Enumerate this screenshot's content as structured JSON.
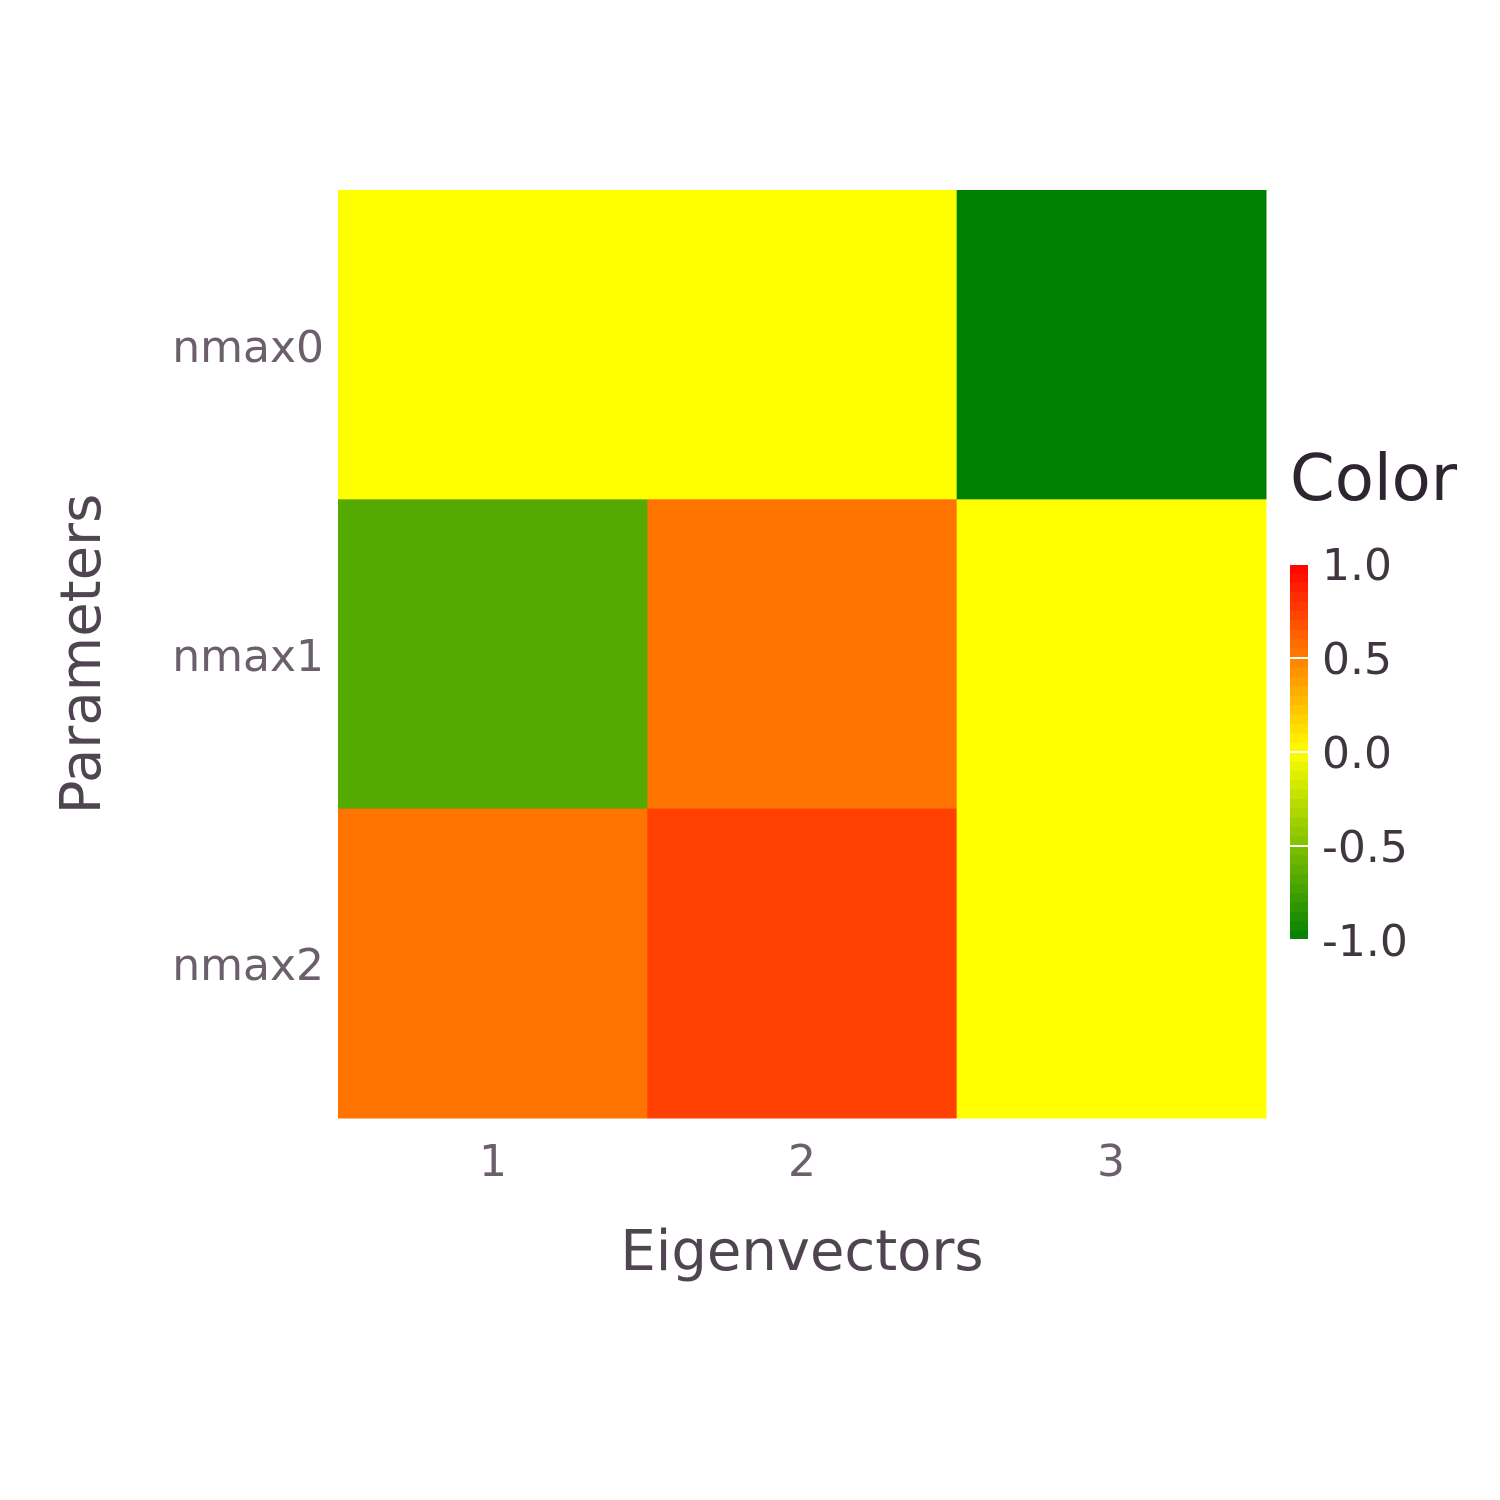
{
  "chart_data": {
    "type": "heatmap",
    "x_categories": [
      "1",
      "2",
      "3"
    ],
    "y_categories": [
      "nmax0",
      "nmax1",
      "nmax2"
    ],
    "values": [
      [
        0.0,
        0.0,
        -1.0
      ],
      [
        -0.67,
        0.55,
        0.0
      ],
      [
        0.55,
        0.75,
        0.0
      ]
    ],
    "xlabel": "Eigenvectors",
    "ylabel": "Parameters",
    "legend": {
      "title": "Color",
      "range": [
        -1.0,
        1.0
      ],
      "ticks": [
        "1.0",
        "0.5",
        "0.0",
        "-0.5",
        "-1.0"
      ],
      "tick_values": [
        1.0,
        0.5,
        0.0,
        -0.5,
        -1.0
      ],
      "placement": "right"
    },
    "colorscale": {
      "low": "#008000",
      "mid": "#ffff00",
      "high": "#ff0000"
    },
    "grid": false
  }
}
